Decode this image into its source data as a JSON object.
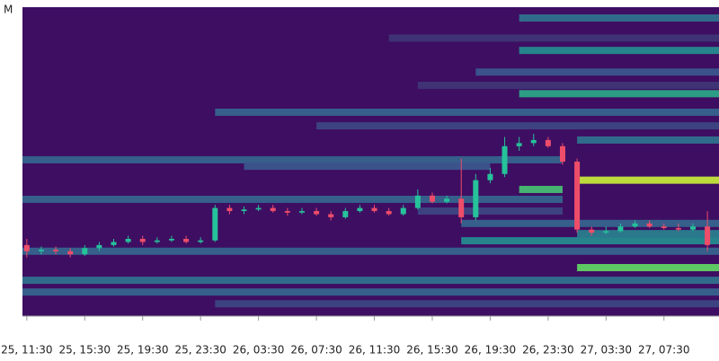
{
  "chart_data": {
    "type": "candlestick-heatmap",
    "y_unit": "M",
    "background_color": "#3e0e62",
    "colorscale": [
      "#440154",
      "#3b528b",
      "#21918c",
      "#5ec962",
      "#fde725"
    ],
    "up_color": "#26c29a",
    "down_color": "#ee4d6a",
    "xlim": [
      -0.3,
      47.8
    ],
    "ylim": [
      0,
      100
    ],
    "xticks": [
      {
        "value": 0,
        "label": "25, 11:30"
      },
      {
        "value": 4,
        "label": "25, 15:30"
      },
      {
        "value": 8,
        "label": "25, 19:30"
      },
      {
        "value": 12,
        "label": "25, 23:30"
      },
      {
        "value": 16,
        "label": "26, 03:30"
      },
      {
        "value": 20,
        "label": "26, 07:30"
      },
      {
        "value": 24,
        "label": "26, 11:30"
      },
      {
        "value": 28,
        "label": "26, 15:30"
      },
      {
        "value": 32,
        "label": "26, 19:30"
      },
      {
        "value": 36,
        "label": "26, 23:30"
      },
      {
        "value": 40,
        "label": "27, 03:30"
      },
      {
        "value": 44,
        "label": "27, 07:30"
      }
    ],
    "x": [
      0,
      1,
      2,
      3,
      4,
      5,
      6,
      7,
      8,
      9,
      10,
      11,
      12,
      13,
      14,
      15,
      16,
      17,
      18,
      19,
      20,
      21,
      22,
      23,
      24,
      25,
      26,
      27,
      28,
      29,
      30,
      31,
      32,
      33,
      34,
      35,
      36,
      37,
      38,
      39,
      40,
      41,
      42,
      43,
      44,
      45,
      46,
      47
    ],
    "open": [
      23,
      21,
      21.5,
      21,
      20,
      22,
      23,
      24,
      25,
      24,
      24.5,
      25,
      24,
      24.5,
      35,
      34,
      34.5,
      35,
      34,
      33.5,
      34,
      33,
      32,
      34,
      35,
      34,
      33,
      35,
      39,
      37,
      38,
      32,
      44,
      46,
      55,
      56,
      57,
      55,
      50,
      28,
      27,
      27.5,
      29,
      30,
      29,
      28.5,
      28,
      29
    ],
    "close": [
      21,
      21.5,
      21,
      20,
      22,
      23,
      24,
      25,
      24,
      24.5,
      25,
      24,
      24.5,
      35,
      34,
      34.5,
      35,
      34,
      33.5,
      34,
      33,
      32,
      34,
      35,
      34,
      33,
      35,
      39,
      37,
      38,
      32,
      44,
      46,
      55,
      56,
      57,
      55,
      50,
      28,
      27,
      27.5,
      29,
      30,
      29,
      28.5,
      28,
      29,
      23
    ],
    "high": [
      25,
      22.5,
      22.5,
      22,
      23,
      24,
      25,
      26,
      26,
      25.5,
      26,
      26,
      25.5,
      36,
      36,
      35.5,
      36,
      36,
      35,
      35,
      35,
      34,
      35,
      36,
      36,
      35,
      36,
      41,
      40,
      39,
      51,
      46,
      48,
      58,
      58,
      59,
      58,
      56,
      51,
      29,
      29,
      30,
      31,
      31,
      30,
      30,
      30,
      34
    ],
    "low": [
      19,
      20,
      20,
      19,
      19.5,
      21,
      22.5,
      23.5,
      23,
      23.5,
      24,
      23.5,
      23.5,
      24,
      33,
      33,
      34,
      33.5,
      32.5,
      33,
      32.5,
      31,
      31.5,
      33.5,
      33.5,
      32.5,
      32.5,
      34.5,
      36.5,
      36.5,
      30,
      31,
      43,
      45,
      53.5,
      55,
      54.5,
      49,
      27,
      26,
      26.5,
      27,
      28.5,
      28.5,
      28,
      27.5,
      27.5,
      21
    ],
    "bands": [
      {
        "price": 96.5,
        "from": 34,
        "to": 47.8,
        "intensity": 0.35
      },
      {
        "price": 90,
        "from": 25,
        "to": 47.8,
        "intensity": 0.15
      },
      {
        "price": 86,
        "from": 34,
        "to": 47.8,
        "intensity": 0.45
      },
      {
        "price": 79,
        "from": 31,
        "to": 47.8,
        "intensity": 0.25
      },
      {
        "price": 74.7,
        "from": 27,
        "to": 47.8,
        "intensity": 0.15
      },
      {
        "price": 72,
        "from": 34,
        "to": 47.8,
        "intensity": 0.55
      },
      {
        "price": 66,
        "from": 13,
        "to": 47.8,
        "intensity": 0.3
      },
      {
        "price": 61.6,
        "from": 20,
        "to": 47.8,
        "intensity": 0.2
      },
      {
        "price": 57,
        "from": 38,
        "to": 47.8,
        "intensity": 0.35
      },
      {
        "price": 50.6,
        "from": -0.3,
        "to": 37,
        "intensity": 0.3
      },
      {
        "price": 48.5,
        "from": 15,
        "to": 32,
        "intensity": 0.25
      },
      {
        "price": 44,
        "from": 38,
        "to": 47.8,
        "intensity": 0.9
      },
      {
        "price": 41,
        "from": 34,
        "to": 37,
        "intensity": 0.65
      },
      {
        "price": 37.8,
        "from": -0.3,
        "to": 37,
        "intensity": 0.3
      },
      {
        "price": 34,
        "from": 27,
        "to": 37,
        "intensity": 0.2
      },
      {
        "price": 30,
        "from": 30,
        "to": 47.8,
        "intensity": 0.3
      },
      {
        "price": 26.7,
        "from": 38,
        "to": 47.8,
        "intensity": 0.4
      },
      {
        "price": 24.4,
        "from": 30,
        "to": 47.8,
        "intensity": 0.45
      },
      {
        "price": 21,
        "from": -0.3,
        "to": 47.8,
        "intensity": 0.3
      },
      {
        "price": 15.7,
        "from": 38,
        "to": 47.8,
        "intensity": 0.75
      },
      {
        "price": 11.6,
        "from": -0.3,
        "to": 47.8,
        "intensity": 0.35
      },
      {
        "price": 7.8,
        "from": -0.3,
        "to": 47.8,
        "intensity": 0.3
      },
      {
        "price": 4,
        "from": 13,
        "to": 47.8,
        "intensity": 0.2
      }
    ]
  }
}
